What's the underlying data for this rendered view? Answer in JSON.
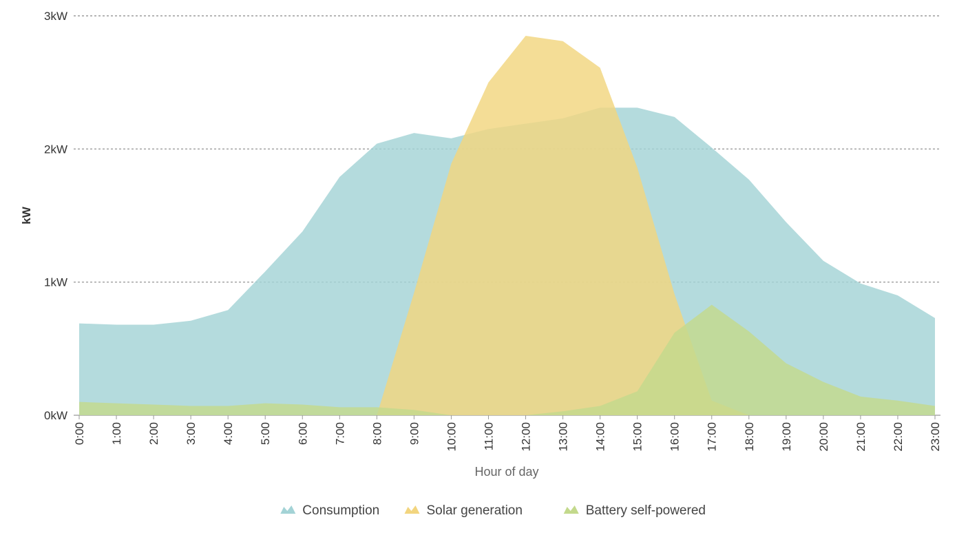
{
  "chart_data": {
    "type": "area",
    "xlabel": "Hour of day",
    "ylabel": "kW",
    "x": [
      "0:00",
      "1:00",
      "2:00",
      "3:00",
      "4:00",
      "5:00",
      "6:00",
      "7:00",
      "8:00",
      "9:00",
      "10:00",
      "11:00",
      "12:00",
      "13:00",
      "14:00",
      "15:00",
      "16:00",
      "17:00",
      "18:00",
      "19:00",
      "20:00",
      "21:00",
      "22:00",
      "23:00"
    ],
    "ylim": [
      0,
      3
    ],
    "yticks": [
      {
        "value": 0,
        "label": "0kW"
      },
      {
        "value": 1,
        "label": "1kW"
      },
      {
        "value": 2,
        "label": "2kW"
      },
      {
        "value": 3,
        "label": "3kW"
      }
    ],
    "grid": true,
    "legend_position": "bottom-center",
    "series": [
      {
        "name": "Consumption",
        "color": "#a3d3d6",
        "values": [
          0.69,
          0.68,
          0.68,
          0.71,
          0.79,
          1.08,
          1.38,
          1.79,
          2.04,
          2.12,
          2.08,
          2.15,
          2.19,
          2.23,
          2.31,
          2.31,
          2.24,
          2.01,
          1.77,
          1.45,
          1.16,
          0.99,
          0.9,
          0.73
        ]
      },
      {
        "name": "Solar generation",
        "color": "#f2d57f",
        "values": [
          0,
          0,
          0,
          0,
          0,
          0,
          0,
          0,
          0,
          0.92,
          1.89,
          2.5,
          2.85,
          2.81,
          2.61,
          1.86,
          0.91,
          0.11,
          0,
          0,
          0,
          0,
          0,
          0
        ]
      },
      {
        "name": "Battery self-powered",
        "color": "#c3d98c",
        "values": [
          0.1,
          0.09,
          0.08,
          0.07,
          0.07,
          0.09,
          0.08,
          0.06,
          0.06,
          0.04,
          0,
          0,
          0,
          0.03,
          0.07,
          0.18,
          0.62,
          0.83,
          0.63,
          0.39,
          0.25,
          0.14,
          0.11,
          0.07
        ]
      }
    ]
  }
}
